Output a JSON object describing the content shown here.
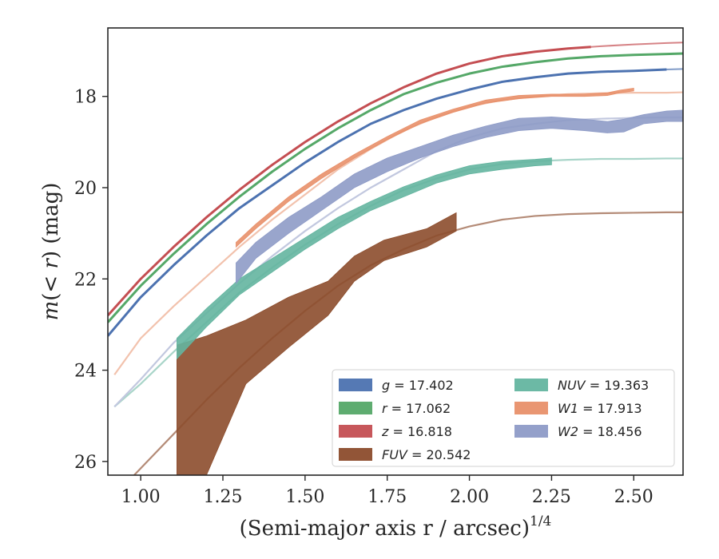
{
  "chart_data": {
    "type": "line",
    "xlabel": "(Semi-major axis r / arcsec)",
    "xlabel_italic": "r",
    "xlabel_exponent": "1/4",
    "ylabel": "m(< r) (mag)",
    "xlim": [
      0.9,
      2.65
    ],
    "ylim": [
      26.3,
      16.5
    ],
    "y_inverted": true,
    "xticks": [
      1.0,
      1.25,
      1.5,
      1.75,
      2.0,
      2.25,
      2.5
    ],
    "xtick_labels": [
      "1.00",
      "1.25",
      "1.50",
      "1.75",
      "2.00",
      "2.25",
      "2.50"
    ],
    "yticks": [
      18,
      20,
      22,
      24,
      26
    ],
    "ytick_labels": [
      "18",
      "20",
      "22",
      "24",
      "26"
    ],
    "grid": false,
    "legend_position": "lower-right",
    "series": [
      {
        "name": "g = 17.402",
        "band": "g",
        "total": "17.402",
        "color": "#4c72b0",
        "x": [
          0.9,
          1.0,
          1.1,
          1.2,
          1.3,
          1.4,
          1.5,
          1.6,
          1.7,
          1.8,
          1.9,
          2.0,
          2.1,
          2.2,
          2.3,
          2.4,
          2.5,
          2.6,
          2.65
        ],
        "y": [
          23.25,
          22.4,
          21.7,
          21.05,
          20.45,
          19.95,
          19.45,
          19.0,
          18.6,
          18.3,
          18.05,
          17.85,
          17.68,
          17.58,
          17.5,
          17.46,
          17.44,
          17.41,
          17.4
        ],
        "band_halfwidth": [
          0.05,
          0.04,
          0.03,
          0.03,
          0.03,
          0.03,
          0.03,
          0.03,
          0.03,
          0.03,
          0.03,
          0.03,
          0.03,
          0.03,
          0.03,
          0.03,
          0.03,
          0.03,
          0.03
        ],
        "data_xmax": 2.6,
        "extrap_xmax": 2.65
      },
      {
        "name": "r = 17.062",
        "band": "r",
        "total": "17.062",
        "color": "#55a868",
        "x": [
          0.9,
          1.0,
          1.1,
          1.2,
          1.3,
          1.4,
          1.5,
          1.6,
          1.7,
          1.8,
          1.9,
          2.0,
          2.1,
          2.2,
          2.3,
          2.4,
          2.5,
          2.6,
          2.65
        ],
        "y": [
          22.95,
          22.15,
          21.45,
          20.8,
          20.2,
          19.65,
          19.15,
          18.7,
          18.3,
          17.95,
          17.7,
          17.5,
          17.35,
          17.25,
          17.17,
          17.12,
          17.09,
          17.07,
          17.06
        ],
        "band_halfwidth": [
          0.05,
          0.04,
          0.03,
          0.03,
          0.03,
          0.03,
          0.03,
          0.03,
          0.03,
          0.03,
          0.03,
          0.03,
          0.03,
          0.03,
          0.03,
          0.03,
          0.03,
          0.03,
          0.03
        ],
        "data_xmax": 2.65,
        "extrap_xmax": 2.65
      },
      {
        "name": "z = 16.818",
        "band": "z",
        "total": "16.818",
        "color": "#c44e52",
        "x": [
          0.9,
          1.0,
          1.1,
          1.2,
          1.3,
          1.4,
          1.5,
          1.6,
          1.7,
          1.8,
          1.9,
          2.0,
          2.1,
          2.2,
          2.3,
          2.4,
          2.5,
          2.6,
          2.65
        ],
        "y": [
          22.8,
          22.0,
          21.3,
          20.65,
          20.05,
          19.5,
          19.0,
          18.55,
          18.15,
          17.8,
          17.5,
          17.28,
          17.12,
          17.02,
          16.95,
          16.9,
          16.86,
          16.83,
          16.82
        ],
        "band_halfwidth": [
          0.05,
          0.04,
          0.03,
          0.03,
          0.03,
          0.03,
          0.03,
          0.03,
          0.03,
          0.03,
          0.03,
          0.03,
          0.03,
          0.03,
          0.03,
          0.03,
          0.03,
          0.03,
          0.03
        ],
        "data_xmax": 2.37,
        "extrap_xmax": 2.65
      },
      {
        "name": "FUV = 20.542",
        "band": "FUV",
        "total": "20.542",
        "color": "#8c4c2c",
        "x": [
          1.11,
          1.2,
          1.32,
          1.45,
          1.57,
          1.65,
          1.74,
          1.87,
          1.96
        ],
        "ylow": [
          26.3,
          26.3,
          24.3,
          23.5,
          22.8,
          22.05,
          21.6,
          21.3,
          20.95
        ],
        "yhigh": [
          23.45,
          23.25,
          22.9,
          22.4,
          22.05,
          21.5,
          21.15,
          20.9,
          20.55
        ],
        "model_x": [
          0.98,
          1.1,
          1.2,
          1.3,
          1.4,
          1.5,
          1.6,
          1.7,
          1.8,
          1.9,
          2.0,
          2.1,
          2.2,
          2.3,
          2.4,
          2.5,
          2.6,
          2.65
        ],
        "model_y": [
          26.3,
          25.4,
          24.65,
          23.95,
          23.3,
          22.7,
          22.15,
          21.7,
          21.35,
          21.05,
          20.85,
          20.7,
          20.62,
          20.58,
          20.56,
          20.55,
          20.54,
          20.54
        ],
        "color_model": "#b48b77"
      },
      {
        "name": "NUV = 19.363",
        "band": "NUV",
        "total": "19.363",
        "color": "#64b5a0",
        "x": [
          1.11,
          1.2,
          1.3,
          1.4,
          1.5,
          1.6,
          1.7,
          1.8,
          1.9,
          2.0,
          2.1,
          2.2,
          2.25
        ],
        "ylow": [
          23.75,
          23.05,
          22.35,
          21.85,
          21.35,
          20.9,
          20.5,
          20.2,
          19.9,
          19.7,
          19.6,
          19.52,
          19.5
        ],
        "yhigh": [
          23.3,
          22.65,
          22.0,
          21.55,
          21.1,
          20.65,
          20.3,
          19.98,
          19.72,
          19.52,
          19.42,
          19.38,
          19.35
        ],
        "model_x": [
          0.92,
          1.0,
          1.1,
          1.2,
          1.3,
          1.4,
          1.5,
          1.6,
          1.7,
          1.8,
          1.9,
          2.0,
          2.1,
          2.2,
          2.3,
          2.4,
          2.5,
          2.6,
          2.65
        ],
        "model_y": [
          24.8,
          24.3,
          23.6,
          22.95,
          22.3,
          21.75,
          21.25,
          20.8,
          20.4,
          20.05,
          19.8,
          19.6,
          19.48,
          19.42,
          19.39,
          19.37,
          19.37,
          19.36,
          19.36
        ],
        "color_model": "#a9d5c9"
      },
      {
        "name": "W1 = 17.913",
        "band": "W1",
        "total": "17.913",
        "color": "#e8906a",
        "x": [
          1.29,
          1.35,
          1.45,
          1.55,
          1.65,
          1.75,
          1.85,
          1.95,
          2.05,
          2.15,
          2.25,
          2.35,
          2.42,
          2.46,
          2.5
        ],
        "ylow": [
          21.3,
          20.9,
          20.3,
          19.8,
          19.35,
          18.95,
          18.6,
          18.35,
          18.15,
          18.05,
          18.0,
          18.0,
          17.98,
          17.92,
          17.88
        ],
        "yhigh": [
          21.2,
          20.8,
          20.2,
          19.7,
          19.27,
          18.88,
          18.52,
          18.28,
          18.08,
          17.98,
          17.95,
          17.95,
          17.92,
          17.86,
          17.82
        ],
        "model_x": [
          0.92,
          1.0,
          1.1,
          1.2,
          1.3,
          1.4,
          1.5,
          1.6,
          1.7,
          1.8,
          1.9,
          2.0,
          2.1,
          2.2,
          2.3,
          2.4,
          2.5,
          2.6,
          2.65
        ],
        "model_y": [
          24.1,
          23.3,
          22.6,
          21.95,
          21.3,
          20.7,
          20.15,
          19.6,
          19.15,
          18.75,
          18.45,
          18.22,
          18.08,
          18.0,
          17.95,
          17.93,
          17.92,
          17.92,
          17.91
        ],
        "color_model": "#f2c2ad"
      },
      {
        "name": "W2 = 18.456",
        "band": "W2",
        "total": "18.456",
        "color": "#8e9bc7",
        "x": [
          1.29,
          1.35,
          1.45,
          1.55,
          1.65,
          1.75,
          1.85,
          1.95,
          2.05,
          2.15,
          2.25,
          2.35,
          2.42,
          2.47,
          2.53,
          2.6,
          2.65
        ],
        "ylow": [
          22.1,
          21.55,
          21.0,
          20.5,
          20.0,
          19.65,
          19.35,
          19.1,
          18.9,
          18.75,
          18.7,
          18.75,
          18.8,
          18.78,
          18.6,
          18.55,
          18.55
        ],
        "yhigh": [
          21.65,
          21.2,
          20.65,
          20.2,
          19.7,
          19.35,
          19.1,
          18.85,
          18.65,
          18.48,
          18.45,
          18.5,
          18.55,
          18.5,
          18.4,
          18.32,
          18.3
        ],
        "model_x": [
          0.92,
          1.0,
          1.1,
          1.2,
          1.3,
          1.4,
          1.5,
          1.6,
          1.7,
          1.8,
          1.9,
          2.0,
          2.1,
          2.2,
          2.3,
          2.4,
          2.5,
          2.6,
          2.65
        ],
        "model_y": [
          24.8,
          24.2,
          23.4,
          22.75,
          22.1,
          21.5,
          20.95,
          20.45,
          20.0,
          19.6,
          19.2,
          18.9,
          18.7,
          18.6,
          18.52,
          18.49,
          18.47,
          18.46,
          18.46
        ],
        "color_model": "#c2c8df"
      }
    ]
  }
}
